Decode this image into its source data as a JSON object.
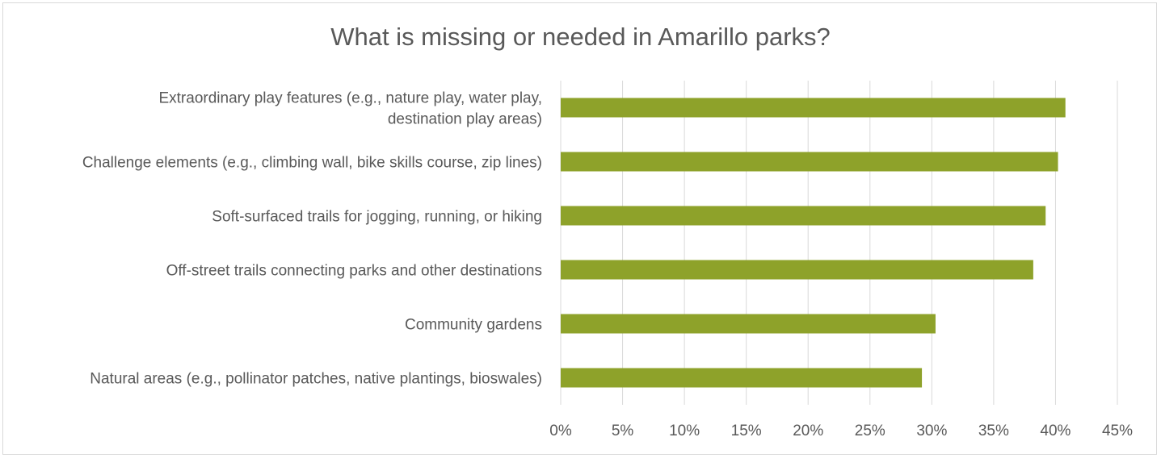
{
  "chart_data": {
    "type": "bar",
    "orientation": "horizontal",
    "title": "What is missing or needed in Amarillo parks?",
    "categories": [
      [
        "Extraordinary play features (e.g., nature play, water play,",
        "destination play areas)"
      ],
      [
        "Challenge elements (e.g., climbing wall, bike skills course, zip lines)"
      ],
      [
        "Soft-surfaced trails for jogging, running, or hiking"
      ],
      [
        "Off-street trails connecting parks and other destinations"
      ],
      [
        "Community gardens"
      ],
      [
        "Natural areas (e.g., pollinator patches, native plantings, bioswales)"
      ]
    ],
    "values": [
      40.8,
      40.2,
      39.2,
      38.2,
      30.3,
      29.2
    ],
    "x_ticks": [
      "0%",
      "5%",
      "10%",
      "15%",
      "20%",
      "25%",
      "30%",
      "35%",
      "40%",
      "45%"
    ],
    "xlim": [
      0,
      45
    ],
    "grid": true,
    "bar_color": "#8ea22a"
  }
}
